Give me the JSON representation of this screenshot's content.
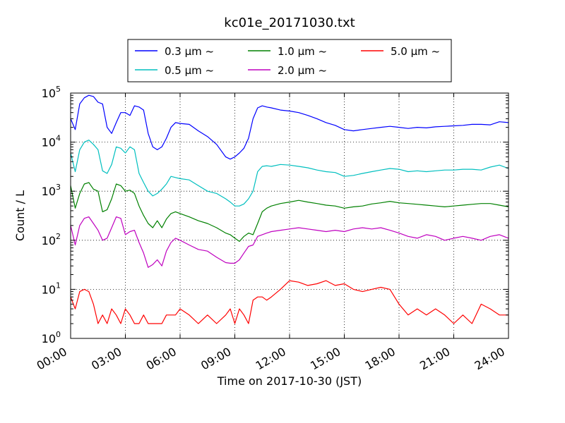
{
  "chart_data": {
    "type": "line",
    "title": "kc01e_20171030.txt",
    "xlabel": "Time on 2017-10-30 (JST)",
    "ylabel": "Count / L",
    "yscale": "log",
    "xlim": [
      0,
      24
    ],
    "ylim": [
      1,
      100000
    ],
    "grid": true,
    "legend_position": "top",
    "x_ticks": [
      {
        "value": 0,
        "label": "00:00"
      },
      {
        "value": 3,
        "label": "03:00"
      },
      {
        "value": 6,
        "label": "06:00"
      },
      {
        "value": 9,
        "label": "09:00"
      },
      {
        "value": 12,
        "label": "12:00"
      },
      {
        "value": 15,
        "label": "15:00"
      },
      {
        "value": 18,
        "label": "18:00"
      },
      {
        "value": 21,
        "label": "21:00"
      },
      {
        "value": 24,
        "label": "24:00"
      }
    ],
    "y_ticks": [
      {
        "value": 1,
        "base": "10",
        "exp": "0"
      },
      {
        "value": 10,
        "base": "10",
        "exp": "1"
      },
      {
        "value": 100,
        "base": "10",
        "exp": "2"
      },
      {
        "value": 1000,
        "base": "10",
        "exp": "3"
      },
      {
        "value": 10000,
        "base": "10",
        "exp": "4"
      },
      {
        "value": 100000,
        "base": "10",
        "exp": "5"
      }
    ],
    "series": [
      {
        "name": "0.3 μm ~",
        "color": "#0000ff",
        "x": [
          0,
          0.25,
          0.5,
          0.75,
          1,
          1.25,
          1.5,
          1.75,
          2,
          2.25,
          2.5,
          2.75,
          3,
          3.25,
          3.5,
          3.75,
          4,
          4.25,
          4.5,
          4.75,
          5,
          5.25,
          5.5,
          5.75,
          6,
          6.5,
          7,
          7.5,
          8,
          8.5,
          8.75,
          9,
          9.25,
          9.5,
          9.75,
          10,
          10.25,
          10.5,
          10.75,
          11,
          11.5,
          12,
          12.5,
          13,
          13.5,
          14,
          14.5,
          15,
          15.5,
          16,
          16.5,
          17,
          17.5,
          18,
          18.5,
          19,
          19.5,
          20,
          20.5,
          21,
          21.5,
          22,
          22.5,
          23,
          23.5,
          24
        ],
        "values": [
          30000,
          18000,
          60000,
          80000,
          90000,
          85000,
          65000,
          60000,
          20000,
          15000,
          25000,
          40000,
          40000,
          35000,
          55000,
          52000,
          45000,
          15000,
          8000,
          7000,
          8000,
          12000,
          20000,
          25000,
          24000,
          23000,
          17000,
          13000,
          9000,
          5000,
          4500,
          5000,
          6000,
          7500,
          12000,
          30000,
          50000,
          55000,
          52000,
          50000,
          45000,
          43000,
          40000,
          35000,
          30000,
          25000,
          22000,
          18000,
          17000,
          18000,
          19000,
          20000,
          21000,
          20000,
          19000,
          20000,
          19500,
          20500,
          21000,
          21500,
          22000,
          23000,
          23000,
          22500,
          26000,
          25000
        ]
      },
      {
        "name": "0.5 μm ~",
        "color": "#00bfbf",
        "x": [
          0,
          0.25,
          0.5,
          0.75,
          1,
          1.25,
          1.5,
          1.75,
          2,
          2.25,
          2.5,
          2.75,
          3,
          3.25,
          3.5,
          3.75,
          4,
          4.25,
          4.5,
          4.75,
          5,
          5.25,
          5.5,
          5.75,
          6,
          6.5,
          7,
          7.5,
          8,
          8.5,
          8.75,
          9,
          9.25,
          9.5,
          9.75,
          10,
          10.25,
          10.5,
          10.75,
          11,
          11.5,
          12,
          12.5,
          13,
          13.5,
          14,
          14.5,
          15,
          15.5,
          16,
          16.5,
          17,
          17.5,
          18,
          18.5,
          19,
          19.5,
          20,
          20.5,
          21,
          21.5,
          22,
          22.5,
          23,
          23.5,
          24
        ],
        "values": [
          6000,
          2500,
          7000,
          10000,
          11000,
          9000,
          7000,
          2600,
          2300,
          3500,
          8000,
          7500,
          6000,
          8000,
          7000,
          2300,
          1500,
          1000,
          800,
          900,
          1100,
          1400,
          2000,
          1900,
          1800,
          1700,
          1300,
          1000,
          900,
          700,
          600,
          500,
          500,
          550,
          700,
          1000,
          2500,
          3200,
          3300,
          3200,
          3500,
          3400,
          3200,
          3000,
          2700,
          2500,
          2400,
          2000,
          2100,
          2300,
          2500,
          2700,
          2900,
          2800,
          2500,
          2600,
          2500,
          2600,
          2700,
          2700,
          2800,
          2800,
          2700,
          3100,
          3400,
          2900
        ]
      },
      {
        "name": "1.0 μm ~",
        "color": "#008000",
        "x": [
          0,
          0.25,
          0.5,
          0.75,
          1,
          1.25,
          1.5,
          1.75,
          2,
          2.25,
          2.5,
          2.75,
          3,
          3.25,
          3.5,
          3.75,
          4,
          4.25,
          4.5,
          4.75,
          5,
          5.25,
          5.5,
          5.75,
          6,
          6.5,
          7,
          7.5,
          8,
          8.5,
          8.75,
          9,
          9.25,
          9.5,
          9.75,
          10,
          10.25,
          10.5,
          10.75,
          11,
          11.5,
          12,
          12.5,
          13,
          13.5,
          14,
          14.5,
          15,
          15.5,
          16,
          16.5,
          17,
          17.5,
          18,
          18.5,
          19,
          19.5,
          20,
          20.5,
          21,
          21.5,
          22,
          22.5,
          23,
          23.5,
          24
        ],
        "values": [
          1300,
          450,
          900,
          1400,
          1500,
          1100,
          1000,
          380,
          420,
          700,
          1400,
          1300,
          1000,
          1050,
          900,
          500,
          320,
          220,
          180,
          250,
          180,
          270,
          350,
          380,
          350,
          300,
          250,
          220,
          180,
          140,
          130,
          110,
          95,
          120,
          140,
          130,
          220,
          380,
          450,
          500,
          560,
          600,
          650,
          600,
          560,
          520,
          500,
          450,
          480,
          500,
          550,
          580,
          620,
          580,
          560,
          540,
          520,
          500,
          480,
          500,
          520,
          540,
          560,
          560,
          520,
          480
        ]
      },
      {
        "name": "2.0 μm ~",
        "color": "#bf00bf",
        "x": [
          0,
          0.25,
          0.5,
          0.75,
          1,
          1.25,
          1.5,
          1.75,
          2,
          2.25,
          2.5,
          2.75,
          3,
          3.25,
          3.5,
          3.75,
          4,
          4.25,
          4.5,
          4.75,
          5,
          5.25,
          5.5,
          5.75,
          6,
          6.5,
          7,
          7.5,
          8,
          8.5,
          8.75,
          9,
          9.25,
          9.5,
          9.75,
          10,
          10.25,
          10.5,
          10.75,
          11,
          11.5,
          12,
          12.5,
          13,
          13.5,
          14,
          14.5,
          15,
          15.5,
          16,
          16.5,
          17,
          17.5,
          18,
          18.5,
          19,
          19.5,
          20,
          20.5,
          21,
          21.5,
          22,
          22.5,
          23,
          23.5,
          24
        ],
        "values": [
          200,
          80,
          200,
          280,
          300,
          220,
          160,
          100,
          110,
          180,
          300,
          280,
          130,
          150,
          160,
          90,
          55,
          28,
          32,
          40,
          30,
          60,
          90,
          110,
          100,
          80,
          65,
          60,
          45,
          35,
          34,
          34,
          40,
          55,
          75,
          80,
          120,
          130,
          140,
          150,
          160,
          170,
          180,
          170,
          160,
          150,
          160,
          150,
          170,
          180,
          170,
          180,
          160,
          140,
          120,
          110,
          130,
          120,
          100,
          110,
          120,
          110,
          100,
          120,
          130,
          110
        ]
      },
      {
        "name": "5.0 μm ~",
        "color": "#ff0000",
        "x": [
          0,
          0.25,
          0.5,
          0.75,
          1,
          1.25,
          1.5,
          1.75,
          2,
          2.25,
          2.5,
          2.75,
          3,
          3.25,
          3.5,
          3.75,
          4,
          4.25,
          4.5,
          4.75,
          5,
          5.25,
          5.5,
          5.75,
          6,
          6.5,
          7,
          7.5,
          8,
          8.5,
          8.75,
          9,
          9.25,
          9.5,
          9.75,
          10,
          10.25,
          10.5,
          10.75,
          11,
          11.5,
          12,
          12.5,
          13,
          13.5,
          14,
          14.5,
          15,
          15.5,
          16,
          16.5,
          17,
          17.5,
          18,
          18.5,
          19,
          19.5,
          20,
          20.5,
          21,
          21.5,
          22,
          22.5,
          23,
          23.5,
          24
        ],
        "values": [
          7,
          4,
          9,
          10,
          9,
          5,
          2,
          3,
          2,
          4,
          3,
          2,
          4,
          3,
          2,
          2,
          3,
          2,
          2,
          2,
          2,
          3,
          3,
          3,
          4,
          3,
          2,
          3,
          2,
          3,
          4,
          2,
          4,
          3,
          2,
          6,
          7,
          7,
          6,
          7,
          10,
          15,
          14,
          12,
          13,
          15,
          12,
          13,
          10,
          9,
          10,
          11,
          10,
          5,
          3,
          4,
          3,
          4,
          3,
          2,
          3,
          2,
          5,
          4,
          3,
          3
        ]
      }
    ]
  }
}
